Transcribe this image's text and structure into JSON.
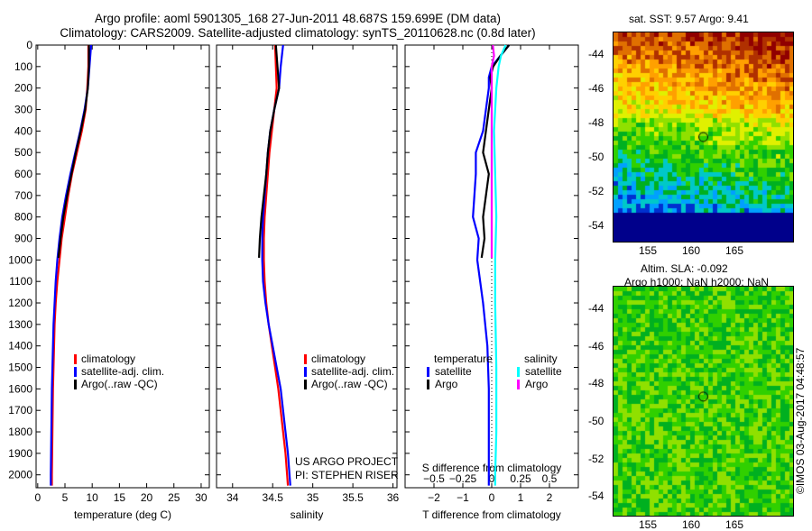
{
  "header": {
    "line1": "Argo profile: aoml 5901305_168 27-Jun-2011 48.687S 159.699E (DM data)",
    "line2": "Climatology: CARS2009. Satellite-adjusted climatology: synTS_20110628.nc (0.8d later)"
  },
  "credit": "©IMOS 03-Aug-2017 04:48:57",
  "project": {
    "line1": "US ARGO PROJECT",
    "line2": "PI: STEPHEN RISER"
  },
  "colors": {
    "climatology": "#ff0000",
    "satellite": "#0000ff",
    "argo": "#000000",
    "sal_satellite": "#00ffff",
    "sal_argo": "#ff00ff"
  },
  "chart_data": [
    {
      "type": "line",
      "xlabel": "temperature (deg C)",
      "xticks": [
        0,
        5,
        10,
        15,
        20,
        25,
        30
      ],
      "xlim": [
        -0.3,
        31.5
      ],
      "ylim": [
        2060,
        0
      ],
      "yticks": [
        0,
        100,
        200,
        300,
        400,
        500,
        600,
        700,
        800,
        900,
        1000,
        1100,
        1200,
        1300,
        1400,
        1500,
        1600,
        1700,
        1800,
        1900,
        2000
      ],
      "legend": [
        "climatology",
        "satellite-adj. clim.",
        "Argo(..raw -QC)"
      ],
      "series": [
        {
          "name": "climatology",
          "depth": [
            0,
            100,
            200,
            300,
            400,
            500,
            600,
            700,
            800,
            900,
            1000,
            1100,
            1200,
            1300,
            1400,
            1500,
            1600,
            1800,
            2000,
            2050
          ],
          "values": [
            9.3,
            9.3,
            9.1,
            8.8,
            8.1,
            7.2,
            6.3,
            5.6,
            5.0,
            4.4,
            4.0,
            3.6,
            3.3,
            3.1,
            3.0,
            2.9,
            2.8,
            2.7,
            2.6,
            2.6
          ]
        },
        {
          "name": "satellite-adj. clim.",
          "depth": [
            0,
            100,
            200,
            300,
            400,
            500,
            600,
            700,
            800,
            900,
            1000,
            1100,
            1200,
            1300,
            1400,
            1500,
            1600,
            1800,
            2000,
            2050
          ],
          "values": [
            9.8,
            9.5,
            9.2,
            8.6,
            7.8,
            6.9,
            6.0,
            5.2,
            4.5,
            4.0,
            3.6,
            3.3,
            3.1,
            2.9,
            2.8,
            2.7,
            2.6,
            2.5,
            2.4,
            2.4
          ]
        },
        {
          "name": "Argo(..raw -QC)",
          "depth": [
            0,
            100,
            200,
            300,
            400,
            500,
            600,
            700,
            800,
            900,
            990
          ],
          "values": [
            9.4,
            9.4,
            9.2,
            8.7,
            7.9,
            7.0,
            6.2,
            5.4,
            4.7,
            4.2,
            3.8
          ]
        }
      ]
    },
    {
      "type": "line",
      "xlabel": "salinity",
      "xticks": [
        34,
        34.5,
        35,
        35.5,
        36
      ],
      "xlim": [
        33.8,
        36.05
      ],
      "ylim": [
        2060,
        0
      ],
      "legend": [
        "climatology",
        "satellite-adj. clim.",
        "Argo(..raw -QC)"
      ],
      "series": [
        {
          "name": "climatology",
          "depth": [
            0,
            100,
            200,
            300,
            400,
            500,
            600,
            700,
            800,
            900,
            1000,
            1100,
            1200,
            1300,
            1400,
            1500,
            1600,
            1700,
            1800,
            1900,
            2000,
            2050
          ],
          "values": [
            34.53,
            34.54,
            34.55,
            34.52,
            34.49,
            34.46,
            34.44,
            34.42,
            34.4,
            34.39,
            34.39,
            34.4,
            34.42,
            34.45,
            34.49,
            34.53,
            34.57,
            34.6,
            34.63,
            34.66,
            34.68,
            34.69
          ]
        },
        {
          "name": "satellite-adj. clim.",
          "depth": [
            0,
            100,
            200,
            300,
            400,
            500,
            600,
            700,
            800,
            900,
            1000,
            1100,
            1200,
            1300,
            1400,
            1500,
            1600,
            1700,
            1800,
            1900,
            2000,
            2050
          ],
          "values": [
            34.63,
            34.6,
            34.58,
            34.52,
            34.47,
            34.44,
            34.42,
            34.4,
            34.38,
            34.37,
            34.37,
            34.38,
            34.41,
            34.45,
            34.5,
            34.55,
            34.6,
            34.63,
            34.66,
            34.69,
            34.71,
            34.72
          ]
        },
        {
          "name": "Argo(..raw -QC)",
          "depth": [
            0,
            100,
            200,
            300,
            400,
            500,
            600,
            700,
            800,
            900,
            990
          ],
          "values": [
            34.54,
            34.56,
            34.58,
            34.52,
            34.47,
            34.44,
            34.42,
            34.39,
            34.36,
            34.34,
            34.33
          ]
        }
      ]
    },
    {
      "type": "line",
      "xlabel": "T difference from climatology",
      "xticks": [
        -2,
        -1,
        0,
        1,
        2
      ],
      "xlim": [
        -3,
        3
      ],
      "x2label": "S difference from climatology",
      "x2ticks": [
        -0.5,
        -0.25,
        0,
        0.25,
        0.5
      ],
      "ylim": [
        2060,
        0
      ],
      "legend": {
        "temperature": "temperature",
        "salinity": "salinity",
        "items": [
          "satellite",
          "Argo",
          "satellite",
          "Argo"
        ]
      },
      "series": [
        {
          "name": "T satellite",
          "depth": [
            0,
            50,
            100,
            150,
            200,
            300,
            400,
            500,
            600,
            700,
            800,
            900,
            1000,
            1100,
            1200,
            1400,
            1600,
            1800,
            2000,
            2050
          ],
          "values": [
            0.6,
            0.3,
            0.0,
            -0.1,
            -0.1,
            -0.2,
            -0.3,
            -0.55,
            -0.55,
            -0.6,
            -0.65,
            -0.45,
            -0.5,
            -0.4,
            -0.3,
            -0.15,
            -0.1,
            -0.1,
            -0.1,
            -0.1
          ]
        },
        {
          "name": "T Argo",
          "depth": [
            0,
            50,
            100,
            150,
            200,
            300,
            400,
            500,
            600,
            700,
            800,
            900,
            990
          ],
          "values": [
            0.6,
            0.3,
            0.05,
            -0.05,
            0.0,
            -0.1,
            -0.2,
            -0.3,
            -0.1,
            -0.2,
            -0.3,
            -0.25,
            -0.35
          ]
        },
        {
          "name": "S satellite",
          "depth": [
            0,
            50,
            100,
            200,
            300,
            400,
            600,
            800,
            1000,
            1200,
            1500,
            1800,
            2000,
            2050
          ],
          "values": [
            0.12,
            0.08,
            0.06,
            0.04,
            0.03,
            0.02,
            0.03,
            0.04,
            0.03,
            0.03,
            0.04,
            0.04,
            0.03,
            0.03
          ]
        },
        {
          "name": "S Argo",
          "depth": [
            0,
            50,
            100,
            200,
            300,
            400,
            600,
            800,
            990
          ],
          "values": [
            0.01,
            0.02,
            0.0,
            0.0,
            0.0,
            0.0,
            0.0,
            0.0,
            0.0
          ]
        }
      ]
    }
  ],
  "maps": [
    {
      "title": "sat. SST: 9.57 Argo: 9.41",
      "xticks": [
        "155",
        "160",
        "165"
      ],
      "yticks": [
        "-44",
        "-46",
        "-48",
        "-50",
        "-52",
        "-54"
      ]
    },
    {
      "title1": "Altim. SLA: -0.092",
      "title2": "Argo h1000: NaN h2000: NaN",
      "xticks": [
        "155",
        "160",
        "165"
      ],
      "yticks": [
        "-44",
        "-46",
        "-48",
        "-50",
        "-52",
        "-54"
      ]
    }
  ]
}
